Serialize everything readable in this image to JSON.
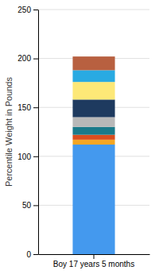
{
  "chart_data": {
    "type": "bar",
    "stacked": true,
    "categories": [
      "Boy 17 years 5 months"
    ],
    "series": [
      {
        "color": "#4499ee",
        "values": [
          112
        ]
      },
      {
        "color": "#f5a623",
        "values": [
          5
        ]
      },
      {
        "color": "#d94e1f",
        "values": [
          5
        ]
      },
      {
        "color": "#1a7a8a",
        "values": [
          8
        ]
      },
      {
        "color": "#b8b8b8",
        "values": [
          10
        ]
      },
      {
        "color": "#1e3a5f",
        "values": [
          18
        ]
      },
      {
        "color": "#fde877",
        "values": [
          18
        ]
      },
      {
        "color": "#29aae2",
        "values": [
          12
        ]
      },
      {
        "color": "#b86040",
        "values": [
          14
        ]
      }
    ],
    "ylabel": "Percentile Weight in Pounds",
    "ylim": [
      0,
      250
    ],
    "yticks": [
      0,
      50,
      100,
      150,
      200,
      250
    ],
    "grid": true
  }
}
